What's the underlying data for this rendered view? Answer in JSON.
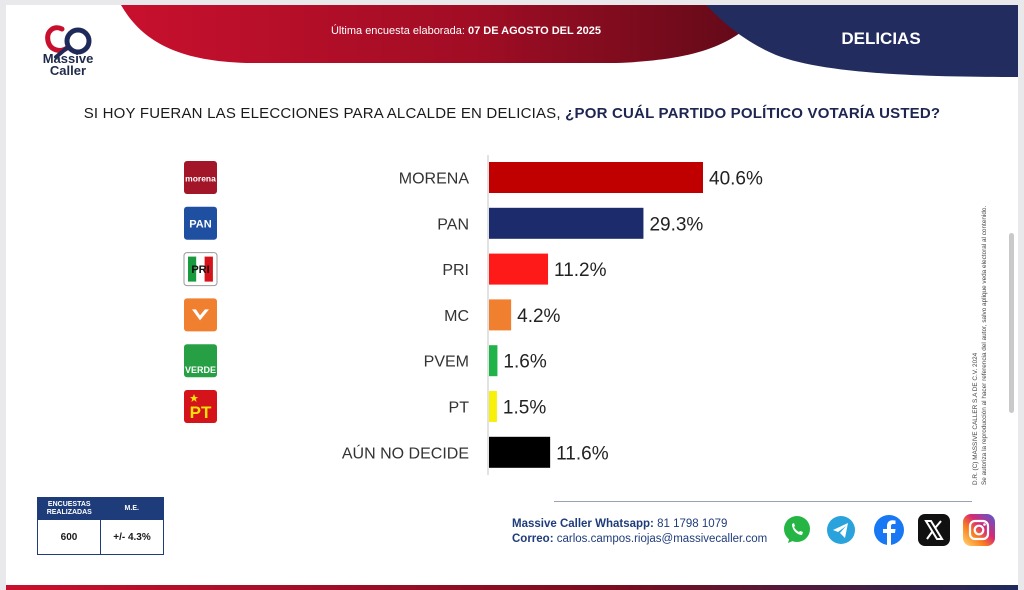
{
  "header": {
    "brand_line1": "Massive",
    "brand_line2": "Caller",
    "survey_prefix": "Última encuesta elaborada:",
    "survey_date": "07 DE AGOSTO DEL 2025",
    "city": "DELICIAS",
    "colors": {
      "red": "#b0112a",
      "dark_red": "#6e0c1c",
      "navy": "#222c5e"
    }
  },
  "question": {
    "part1": "SI HOY FUERAN LAS ELECCIONES PARA ALCALDE EN DELICIAS,",
    "part2": "¿POR CUÁL PARTIDO POLÍTICO VOTARÍA USTED?"
  },
  "chart_data": {
    "type": "bar",
    "orientation": "horizontal",
    "categories": [
      "MORENA",
      "PAN",
      "PRI",
      "MC",
      "PVEM",
      "PT",
      "AÚN NO DECIDE"
    ],
    "values": [
      40.6,
      29.3,
      11.2,
      4.2,
      1.6,
      1.5,
      11.6
    ],
    "value_labels": [
      "40.6%",
      "29.3%",
      "11.2%",
      "4.2%",
      "1.6%",
      "1.5%",
      "11.6%"
    ],
    "colors": [
      "#c00000",
      "#1b2b6b",
      "#ff1a1a",
      "#f08030",
      "#1fb34a",
      "#f7f00a",
      "#000000"
    ],
    "grid": false,
    "legend": "none"
  },
  "party_logos": [
    {
      "icon": "morena-logo-icon",
      "text": "morena",
      "bg": "#a3162a",
      "fg": "#ffffff"
    },
    {
      "icon": "pan-logo-icon",
      "text": "PAN",
      "bg": "#1f4fa0",
      "fg": "#ffffff"
    },
    {
      "icon": "pri-logo-icon",
      "text": "PRI",
      "bg": "#ffffff",
      "fg": "#111111"
    },
    {
      "icon": "mc-logo-icon",
      "text": "",
      "bg": "#f08030",
      "fg": "#ffffff"
    },
    {
      "icon": "pvem-logo-icon",
      "text": "VERDE",
      "bg": "#27a045",
      "fg": "#ffffff"
    },
    {
      "icon": "pt-logo-icon",
      "text": "PT",
      "bg": "#d4141a",
      "fg": "#f7e10a"
    }
  ],
  "legal": {
    "line1": "D.R. (C) MASSIVE CALLER S.A DE C.V.  2024",
    "line2": "Se autoriza la reproducción al hacer referencia del autor, salvo aplique veda electoral al contenido."
  },
  "stats": {
    "col1_header": "ENCUESTAS REALIZADAS",
    "col2_header": "M.E.",
    "col1_value": "600",
    "col2_value": "+/- 4.3%"
  },
  "contact": {
    "whatsapp_label": "Massive Caller Whatsapp:",
    "whatsapp_number": "81 1798 1079",
    "email_label": "Correo:",
    "email": "carlos.campos.riojas@massivecaller.com"
  },
  "social": [
    {
      "icon": "whatsapp-icon",
      "color": "#25b544"
    },
    {
      "icon": "telegram-icon",
      "color": "#2aa3dd"
    },
    {
      "icon": "facebook-icon",
      "color": "#1877f2"
    },
    {
      "icon": "x-icon",
      "color": "#111111"
    },
    {
      "icon": "instagram-icon",
      "color": "#d62976"
    }
  ]
}
